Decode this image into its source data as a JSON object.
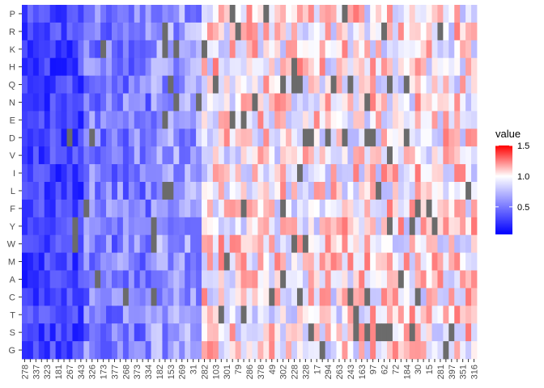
{
  "chart_data": {
    "type": "heatmap",
    "rows": [
      "P",
      "R",
      "K",
      "H",
      "Q",
      "N",
      "E",
      "D",
      "V",
      "I",
      "L",
      "F",
      "Y",
      "W",
      "M",
      "A",
      "C",
      "T",
      "S",
      "G"
    ],
    "columns": [
      "278",
      "337",
      "323",
      "181",
      "267",
      "343",
      "326",
      "173",
      "377",
      "268",
      "373",
      "334",
      "182",
      "153",
      "269",
      "31",
      "282",
      "103",
      "301",
      "79",
      "286",
      "378",
      "49",
      "302",
      "228",
      "328",
      "17",
      "294",
      "263",
      "243",
      "163",
      "97",
      "62",
      "72",
      "184",
      "30",
      "15",
      "281",
      "397",
      "351",
      "316"
    ],
    "column_labels_shown": [
      "278",
      "337",
      "323",
      "181",
      "267",
      "343",
      "326",
      "173",
      "377",
      "268",
      "373",
      "334",
      "182",
      "153",
      "269",
      "31",
      "282",
      "103",
      "301",
      "79",
      "286",
      "378",
      "49",
      "302",
      "228",
      "328",
      "17",
      "294",
      "263",
      "243",
      "163",
      "97",
      "62",
      "72",
      "184",
      "30",
      "15",
      "281",
      "397",
      "351",
      "316"
    ],
    "n_columns": 81,
    "value_range": [
      0.05,
      1.5
    ],
    "colors": {
      "low": "#0000ff",
      "mid": "#ffffff",
      "high": "#ff0000",
      "na": "#6b6b6b"
    },
    "midpoint": 1.0,
    "legend": {
      "title": "value",
      "ticks": [
        "0.5",
        "1.0",
        "1.5"
      ],
      "tick_values": [
        0.5,
        1.0,
        1.5
      ],
      "placement": "right"
    }
  }
}
